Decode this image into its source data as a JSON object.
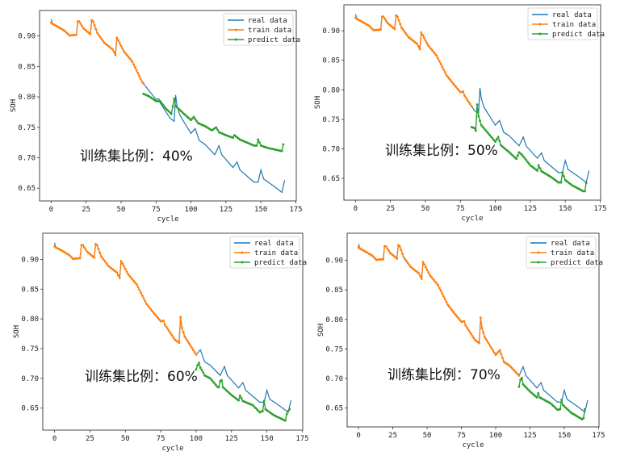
{
  "colors": {
    "real": "#1f77b4",
    "train": "#ff7f0e",
    "predict": "#2ca02c"
  },
  "chart_data": [
    {
      "type": "line",
      "annotation": "训练集比例：40%",
      "xlabel": "cycle",
      "ylabel": "SOH",
      "xlim": [
        -8.3,
        175.3
      ],
      "ylim": [
        0.629,
        0.942
      ],
      "xticks": [
        0,
        25,
        50,
        75,
        100,
        125,
        150,
        175
      ],
      "yticks": [
        "0.65",
        "0.70",
        "0.75",
        "0.80",
        "0.85",
        "0.90"
      ],
      "legend": [
        "real data",
        "train data",
        "predict data"
      ],
      "legend_position": "top-right",
      "train_end_cycle": 66,
      "predict": [
        [
          66,
          0.805
        ],
        [
          70,
          0.801
        ],
        [
          75,
          0.793
        ],
        [
          78,
          0.793
        ],
        [
          82,
          0.781
        ],
        [
          86,
          0.772
        ],
        [
          88,
          0.797
        ],
        [
          89,
          0.785
        ],
        [
          95,
          0.772
        ],
        [
          100,
          0.762
        ],
        [
          102,
          0.767
        ],
        [
          105,
          0.757
        ],
        [
          110,
          0.752
        ],
        [
          115,
          0.745
        ],
        [
          118,
          0.75
        ],
        [
          120,
          0.742
        ],
        [
          125,
          0.737
        ],
        [
          130,
          0.733
        ],
        [
          131,
          0.737
        ],
        [
          135,
          0.73
        ],
        [
          140,
          0.725
        ],
        [
          145,
          0.72
        ],
        [
          147,
          0.72
        ],
        [
          148,
          0.73
        ],
        [
          150,
          0.72
        ],
        [
          155,
          0.716
        ],
        [
          165,
          0.711
        ],
        [
          166,
          0.722
        ]
      ]
    },
    {
      "type": "line",
      "annotation": "训练集比例：50%",
      "xlabel": "cycle",
      "ylabel": "SOH",
      "xlim": [
        -8.3,
        175.3
      ],
      "ylim": [
        0.613,
        0.944
      ],
      "xticks": [
        0,
        25,
        50,
        75,
        100,
        125,
        150,
        175
      ],
      "yticks": [
        "0.65",
        "0.70",
        "0.75",
        "0.80",
        "0.85",
        "0.90"
      ],
      "legend": [
        "real data",
        "train data",
        "predict data"
      ],
      "legend_position": "top-right",
      "train_end_cycle": 83,
      "predict": [
        [
          83,
          0.737
        ],
        [
          85,
          0.735
        ],
        [
          86,
          0.731
        ],
        [
          87,
          0.775
        ],
        [
          88,
          0.755
        ],
        [
          90,
          0.74
        ],
        [
          95,
          0.726
        ],
        [
          100,
          0.712
        ],
        [
          102,
          0.72
        ],
        [
          104,
          0.706
        ],
        [
          110,
          0.694
        ],
        [
          115,
          0.683
        ],
        [
          117,
          0.694
        ],
        [
          119,
          0.69
        ],
        [
          125,
          0.672
        ],
        [
          130,
          0.663
        ],
        [
          131,
          0.672
        ],
        [
          133,
          0.662
        ],
        [
          140,
          0.652
        ],
        [
          145,
          0.643
        ],
        [
          147,
          0.643
        ],
        [
          148,
          0.66
        ],
        [
          150,
          0.647
        ],
        [
          155,
          0.638
        ],
        [
          163,
          0.628
        ],
        [
          164,
          0.628
        ],
        [
          165,
          0.642
        ]
      ]
    },
    {
      "type": "line",
      "annotation": "训练集比例：60%",
      "xlabel": "cycle",
      "ylabel": "SOH",
      "xlim": [
        -8.3,
        175.3
      ],
      "ylim": [
        0.613,
        0.944
      ],
      "xticks": [
        0,
        25,
        50,
        75,
        100,
        125,
        150,
        175
      ],
      "yticks": [
        "0.65",
        "0.70",
        "0.75",
        "0.80",
        "0.85",
        "0.90"
      ],
      "legend": [
        "real data",
        "train data",
        "predict data"
      ],
      "legend_position": "top-right",
      "train_end_cycle": 100,
      "predict": [
        [
          100,
          0.715
        ],
        [
          101,
          0.722
        ],
        [
          102,
          0.726
        ],
        [
          103,
          0.718
        ],
        [
          105,
          0.71
        ],
        [
          106,
          0.705
        ],
        [
          110,
          0.7
        ],
        [
          115,
          0.686
        ],
        [
          116,
          0.685
        ],
        [
          117,
          0.695
        ],
        [
          118,
          0.697
        ],
        [
          119,
          0.685
        ],
        [
          125,
          0.672
        ],
        [
          130,
          0.663
        ],
        [
          131,
          0.671
        ],
        [
          133,
          0.662
        ],
        [
          140,
          0.655
        ],
        [
          145,
          0.643
        ],
        [
          147,
          0.645
        ],
        [
          148,
          0.662
        ],
        [
          149,
          0.648
        ],
        [
          155,
          0.638
        ],
        [
          163,
          0.629
        ],
        [
          164,
          0.64
        ],
        [
          165,
          0.645
        ],
        [
          166,
          0.648
        ]
      ]
    },
    {
      "type": "line",
      "annotation": "训练集比例：70%",
      "xlabel": "cycle",
      "ylabel": "SOH",
      "xlim": [
        -8.3,
        175.3
      ],
      "ylim": [
        0.618,
        0.946
      ],
      "xticks": [
        0,
        25,
        50,
        75,
        100,
        125,
        150,
        175
      ],
      "yticks": [
        "0.65",
        "0.70",
        "0.75",
        "0.80",
        "0.85",
        "0.90"
      ],
      "legend": [
        "real data",
        "train data",
        "predict data"
      ],
      "legend_position": "top-right",
      "train_end_cycle": 117,
      "predict": [
        [
          117,
          0.686
        ],
        [
          118,
          0.698
        ],
        [
          119,
          0.701
        ],
        [
          120,
          0.69
        ],
        [
          125,
          0.678
        ],
        [
          130,
          0.668
        ],
        [
          131,
          0.675
        ],
        [
          132,
          0.668
        ],
        [
          140,
          0.658
        ],
        [
          145,
          0.647
        ],
        [
          147,
          0.648
        ],
        [
          148,
          0.664
        ],
        [
          149,
          0.655
        ],
        [
          155,
          0.642
        ],
        [
          163,
          0.631
        ],
        [
          164,
          0.633
        ],
        [
          165,
          0.648
        ]
      ]
    }
  ],
  "real_data": [
    [
      0,
      0.928
    ],
    [
      1,
      0.92
    ],
    [
      5,
      0.915
    ],
    [
      10,
      0.908
    ],
    [
      13,
      0.901
    ],
    [
      18,
      0.902
    ],
    [
      19,
      0.924
    ],
    [
      20,
      0.924
    ],
    [
      23,
      0.913
    ],
    [
      28,
      0.903
    ],
    [
      29,
      0.926
    ],
    [
      30,
      0.924
    ],
    [
      33,
      0.905
    ],
    [
      38,
      0.889
    ],
    [
      44,
      0.878
    ],
    [
      46,
      0.869
    ],
    [
      47,
      0.897
    ],
    [
      48,
      0.893
    ],
    [
      52,
      0.875
    ],
    [
      58,
      0.858
    ],
    [
      65,
      0.825
    ],
    [
      70,
      0.81
    ],
    [
      75,
      0.796
    ],
    [
      77,
      0.797
    ],
    [
      78,
      0.79
    ],
    [
      85,
      0.765
    ],
    [
      88,
      0.76
    ],
    [
      89,
      0.803
    ],
    [
      90,
      0.785
    ],
    [
      92,
      0.77
    ],
    [
      100,
      0.74
    ],
    [
      103,
      0.748
    ],
    [
      106,
      0.728
    ],
    [
      110,
      0.722
    ],
    [
      117,
      0.705
    ],
    [
      120,
      0.72
    ],
    [
      122,
      0.705
    ],
    [
      130,
      0.684
    ],
    [
      133,
      0.693
    ],
    [
      135,
      0.68
    ],
    [
      145,
      0.66
    ],
    [
      148,
      0.66
    ],
    [
      150,
      0.68
    ],
    [
      152,
      0.665
    ],
    [
      160,
      0.652
    ],
    [
      165,
      0.643
    ],
    [
      167,
      0.663
    ]
  ]
}
